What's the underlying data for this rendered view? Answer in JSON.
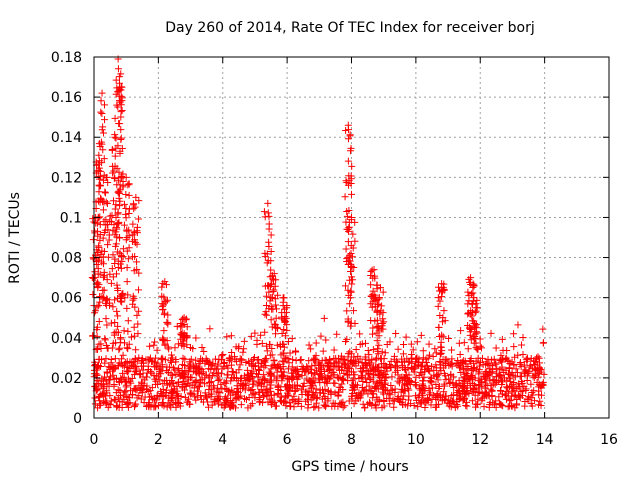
{
  "chart_data": {
    "type": "scatter",
    "title": "Day 260 of 2014, Rate Of TEC Index for receiver borj",
    "xlabel": "GPS time / hours",
    "ylabel": "ROTI / TECUs",
    "xlim": [
      0,
      16
    ],
    "ylim": [
      0,
      0.18
    ],
    "xticks": [
      0,
      2,
      4,
      6,
      8,
      10,
      12,
      14,
      16
    ],
    "xtick_labels": [
      "0",
      "2",
      "4",
      "6",
      "8",
      "10",
      "12",
      "14",
      "16"
    ],
    "yticks": [
      0,
      0.02,
      0.04,
      0.06,
      0.08,
      0.1,
      0.12,
      0.14,
      0.16,
      0.18
    ],
    "ytick_labels": [
      "0",
      "0.02",
      "0.04",
      "0.06",
      "0.08",
      "0.1",
      "0.12",
      "0.14",
      "0.16",
      "0.18"
    ],
    "grid": true,
    "marker": "+",
    "color": "#ff0000",
    "series": [
      {
        "name": "ROTI",
        "data_extent": [
          0,
          14
        ],
        "background_band": [
          0.005,
          0.03
        ],
        "peaks": [
          {
            "x": 0.05,
            "y": 0.1
          },
          {
            "x": 0.15,
            "y": 0.131
          },
          {
            "x": 0.25,
            "y": 0.162
          },
          {
            "x": 0.4,
            "y": 0.12
          },
          {
            "x": 0.65,
            "y": 0.14
          },
          {
            "x": 0.75,
            "y": 0.179
          },
          {
            "x": 0.8,
            "y": 0.165
          },
          {
            "x": 1.0,
            "y": 0.12
          },
          {
            "x": 1.3,
            "y": 0.11
          },
          {
            "x": 2.2,
            "y": 0.068
          },
          {
            "x": 2.8,
            "y": 0.05
          },
          {
            "x": 5.4,
            "y": 0.107
          },
          {
            "x": 5.6,
            "y": 0.072
          },
          {
            "x": 5.9,
            "y": 0.06
          },
          {
            "x": 7.9,
            "y": 0.146
          },
          {
            "x": 8.0,
            "y": 0.1
          },
          {
            "x": 8.7,
            "y": 0.074
          },
          {
            "x": 8.9,
            "y": 0.065
          },
          {
            "x": 10.8,
            "y": 0.067
          },
          {
            "x": 11.7,
            "y": 0.07
          },
          {
            "x": 11.8,
            "y": 0.06
          }
        ]
      }
    ]
  }
}
